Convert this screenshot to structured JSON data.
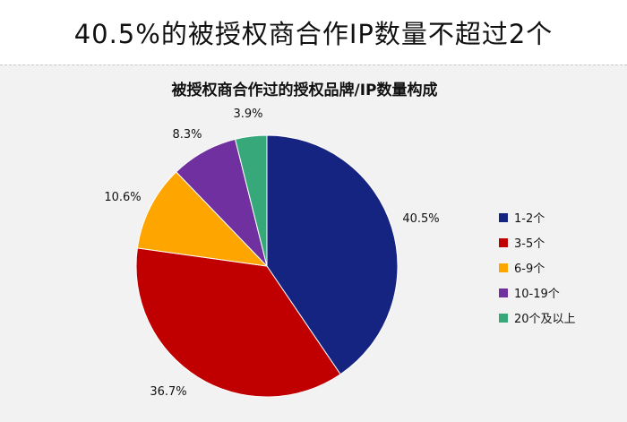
{
  "header": {
    "title": "40.5%的被授权商合作IP数量不超过2个"
  },
  "chart_data": {
    "type": "pie",
    "title": "被授权商合作过的授权品牌/IP数量构成",
    "categories": [
      "1-2个",
      "3-5个",
      "6-9个",
      "10-19个",
      "20个及以上"
    ],
    "values": [
      40.5,
      36.7,
      10.6,
      8.3,
      3.9
    ],
    "labels": [
      "40.5%",
      "36.7%",
      "10.6%",
      "8.3%",
      "3.9%"
    ],
    "colors": [
      "#152381",
      "#c00000",
      "#ffa500",
      "#7030a0",
      "#36a87a"
    ],
    "legend": "right",
    "start_angle": "12 o'clock",
    "direction": "clockwise"
  }
}
